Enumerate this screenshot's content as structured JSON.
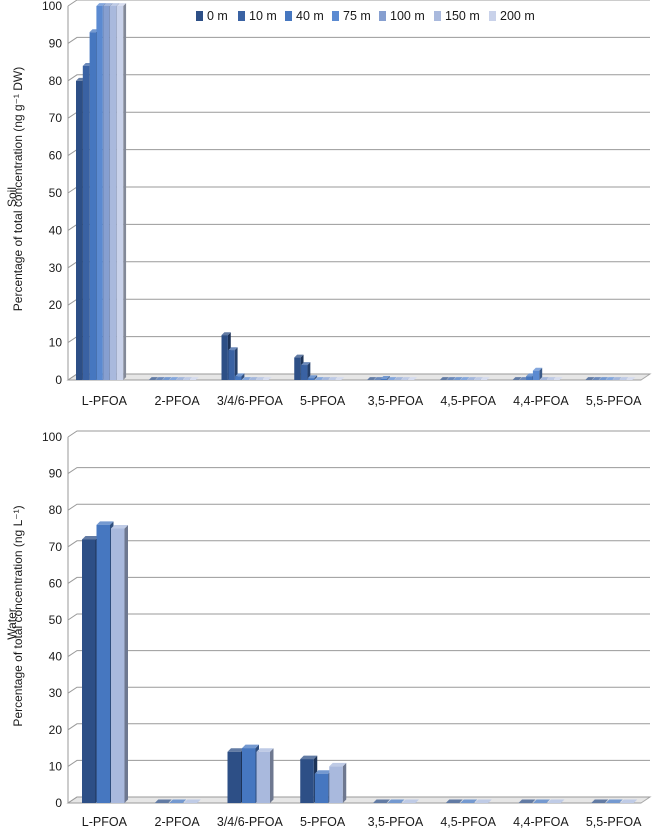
{
  "chart_data": [
    {
      "type": "bar",
      "panel_label": "Soil",
      "ylabel": "Percentage of total concentration (ng g⁻¹ DW)",
      "ylim": [
        0,
        100
      ],
      "yticks": [
        0,
        10,
        20,
        30,
        40,
        50,
        60,
        70,
        80,
        90,
        100
      ],
      "grid": true,
      "legend": "top-right",
      "categories": [
        "L-PFOA",
        "2-PFOA",
        "3/4/6-PFOA",
        "5-PFOA",
        "3,5-PFOA",
        "4,5-PFOA",
        "4,4-PFOA",
        "5,5-PFOA"
      ],
      "series": [
        {
          "name": "0 m",
          "color": "#2d4f86",
          "values": [
            80,
            0,
            12,
            6,
            0,
            0,
            0,
            0
          ]
        },
        {
          "name": "10 m",
          "color": "#3a62a3",
          "values": [
            84,
            0,
            8,
            4,
            0,
            0,
            0,
            0
          ]
        },
        {
          "name": "40 m",
          "color": "#4677c0",
          "values": [
            93,
            0,
            1,
            0.5,
            0.3,
            0,
            1,
            0
          ]
        },
        {
          "name": "75 m",
          "color": "#5b8ad1",
          "values": [
            100,
            0,
            0,
            0,
            0,
            0,
            2.5,
            0
          ]
        },
        {
          "name": "100 m",
          "color": "#869fd0",
          "values": [
            100,
            0,
            0,
            0,
            0,
            0,
            0,
            0
          ]
        },
        {
          "name": "150 m",
          "color": "#a9b9dd",
          "values": [
            100,
            0,
            0,
            0,
            0,
            0,
            0,
            0
          ]
        },
        {
          "name": "200 m",
          "color": "#c9d2ea",
          "values": [
            100,
            0,
            0,
            0,
            0,
            0,
            0,
            0
          ]
        }
      ]
    },
    {
      "type": "bar",
      "panel_label": "Water",
      "ylabel": "Percentage of total concentration (ng L⁻¹)",
      "ylim": [
        0,
        100
      ],
      "yticks": [
        0,
        10,
        20,
        30,
        40,
        50,
        60,
        70,
        80,
        90,
        100
      ],
      "grid": true,
      "categories": [
        "L-PFOA",
        "2-PFOA",
        "3/4/6-PFOA",
        "5-PFOA",
        "3,5-PFOA",
        "4,5-PFOA",
        "4,4-PFOA",
        "5,5-PFOA"
      ],
      "series": [
        {
          "color": "#2d4f86",
          "values": [
            72,
            0,
            14,
            12,
            0,
            0,
            0,
            0
          ]
        },
        {
          "color": "#4677c0",
          "values": [
            76,
            0,
            15,
            8,
            0,
            0,
            0,
            0
          ]
        },
        {
          "color": "#a9b9dd",
          "values": [
            75,
            0,
            14,
            10,
            0,
            0,
            0,
            0
          ]
        }
      ]
    }
  ]
}
